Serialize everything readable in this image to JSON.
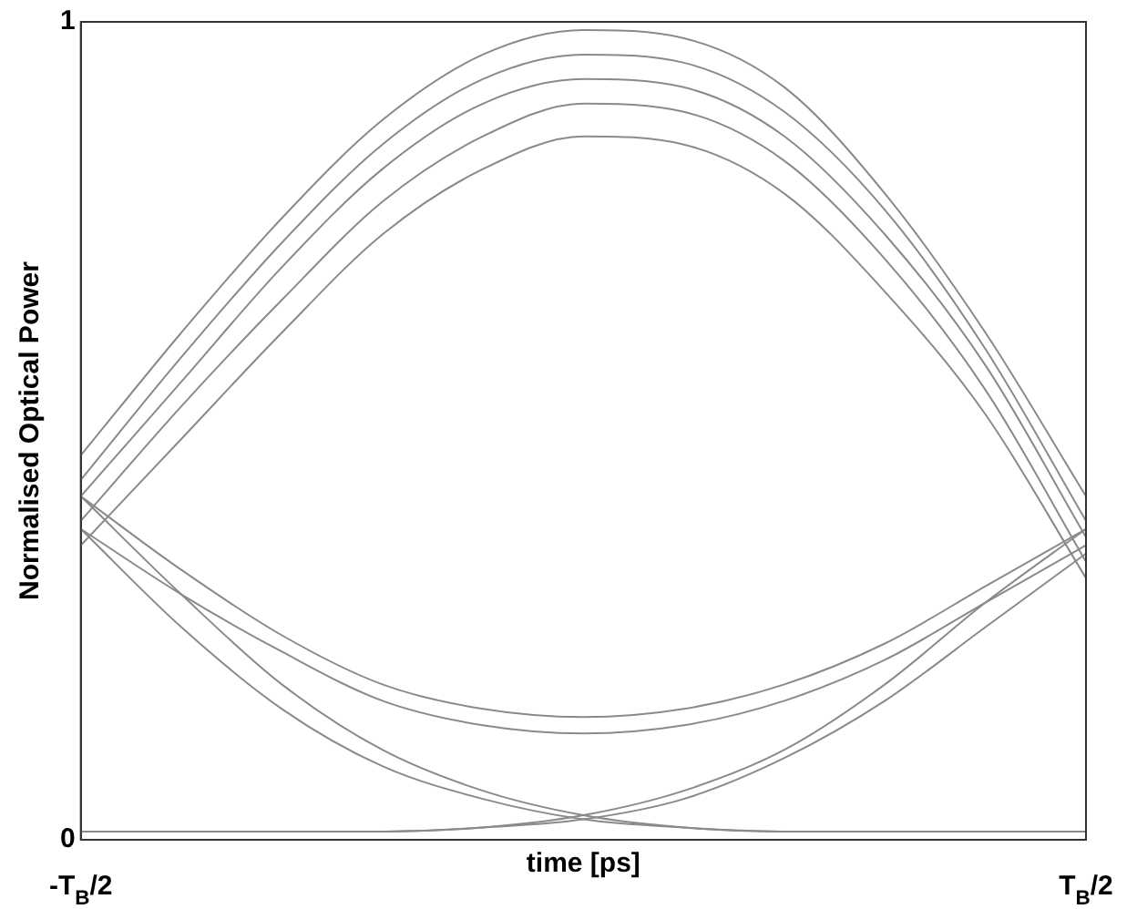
{
  "chart_data": {
    "type": "line",
    "xlabel": "time [ps]",
    "ylabel": "Normalised Optical Power",
    "categories": [
      "-T$_{B}$/2",
      null,
      null,
      null,
      null,
      null,
      null,
      null,
      null,
      null,
      "T$_{B}$/2"
    ],
    "ylim": [
      0,
      1
    ],
    "yticks": [
      0,
      1
    ],
    "legend": false,
    "marker": "none",
    "line_style": "solid",
    "series": [
      {
        "color": "#8a8a8a",
        "values": [
          0.47,
          0.62,
          0.76,
          0.88,
          0.96,
          0.99,
          0.98,
          0.92,
          0.79,
          0.62,
          0.42
        ]
      },
      {
        "color": "#8a8a8a",
        "values": [
          0.44,
          0.59,
          0.73,
          0.85,
          0.93,
          0.96,
          0.95,
          0.89,
          0.77,
          0.6,
          0.39
        ]
      },
      {
        "color": "#8a8a8a",
        "values": [
          0.42,
          0.56,
          0.7,
          0.82,
          0.9,
          0.93,
          0.92,
          0.86,
          0.74,
          0.58,
          0.37
        ]
      },
      {
        "color": "#8a8a8a",
        "values": [
          0.39,
          0.53,
          0.66,
          0.78,
          0.86,
          0.9,
          0.89,
          0.83,
          0.71,
          0.55,
          0.34
        ]
      },
      {
        "color": "#8a8a8a",
        "values": [
          0.36,
          0.49,
          0.62,
          0.74,
          0.82,
          0.86,
          0.85,
          0.79,
          0.67,
          0.52,
          0.32
        ]
      },
      {
        "color": "#8a8a8a",
        "values": [
          0.42,
          0.33,
          0.25,
          0.19,
          0.16,
          0.15,
          0.16,
          0.19,
          0.24,
          0.31,
          0.38
        ]
      },
      {
        "color": "#8a8a8a",
        "values": [
          0.38,
          0.3,
          0.23,
          0.17,
          0.14,
          0.13,
          0.14,
          0.17,
          0.22,
          0.29,
          0.36
        ]
      },
      {
        "color": "#8a8a8a",
        "values": [
          0.42,
          0.3,
          0.19,
          0.11,
          0.06,
          0.03,
          0.015,
          0.01,
          0.01,
          0.01,
          0.01
        ]
      },
      {
        "color": "#8a8a8a",
        "values": [
          0.38,
          0.26,
          0.16,
          0.09,
          0.05,
          0.025,
          0.015,
          0.01,
          0.01,
          0.01,
          0.01
        ]
      },
      {
        "color": "#8a8a8a",
        "values": [
          0.01,
          0.01,
          0.01,
          0.01,
          0.015,
          0.03,
          0.06,
          0.11,
          0.19,
          0.29,
          0.38
        ]
      },
      {
        "color": "#8a8a8a",
        "values": [
          0.01,
          0.01,
          0.01,
          0.01,
          0.015,
          0.025,
          0.05,
          0.1,
          0.17,
          0.26,
          0.35
        ]
      }
    ]
  }
}
